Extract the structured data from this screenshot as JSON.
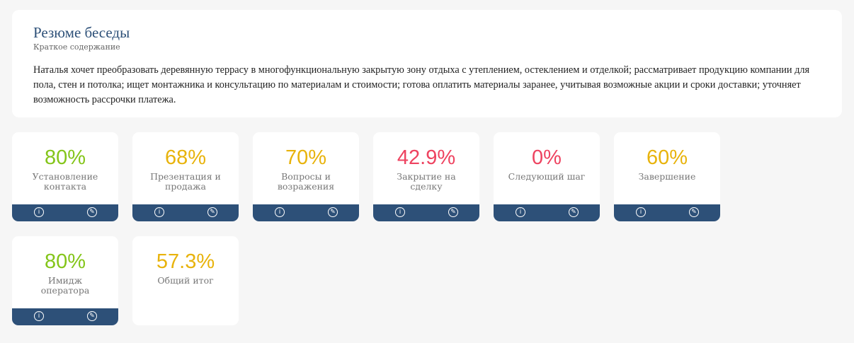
{
  "summary": {
    "title": "Резюме беседы",
    "subtitle": "Краткое содержание",
    "text": "Наталья хочет преобразовать деревянную террасу в многофункциональную закрытую зону отдыха с утеплением, остеклением и отделкой; рассматривает продукцию компании для пола, стен и потолка; ищет монтажника и консультацию по материалам и стоимости; готова оплатить материалы заранее, учитывая возможные акции и сроки доставки; уточняет возможность рассрочки платежа."
  },
  "cards": [
    {
      "value": "80%",
      "label": "Установление контакта",
      "color": "#84c51a"
    },
    {
      "value": "68%",
      "label": "Презентация и продажа",
      "color": "#e8b30c"
    },
    {
      "value": "70%",
      "label": "Вопросы и возражения",
      "color": "#e8b30c"
    },
    {
      "value": "42.9%",
      "label": "Закрытие на сделку",
      "color": "#ee4360"
    },
    {
      "value": "0%",
      "label": "Следующий шаг",
      "color": "#ee4360"
    },
    {
      "value": "60%",
      "label": "Завершение",
      "color": "#e8b30c"
    },
    {
      "value": "80%",
      "label": "Имидж оператора",
      "color": "#84c51a"
    }
  ],
  "total": {
    "value": "57.3%",
    "label": "Общий итог",
    "color": "#e8b30c"
  }
}
